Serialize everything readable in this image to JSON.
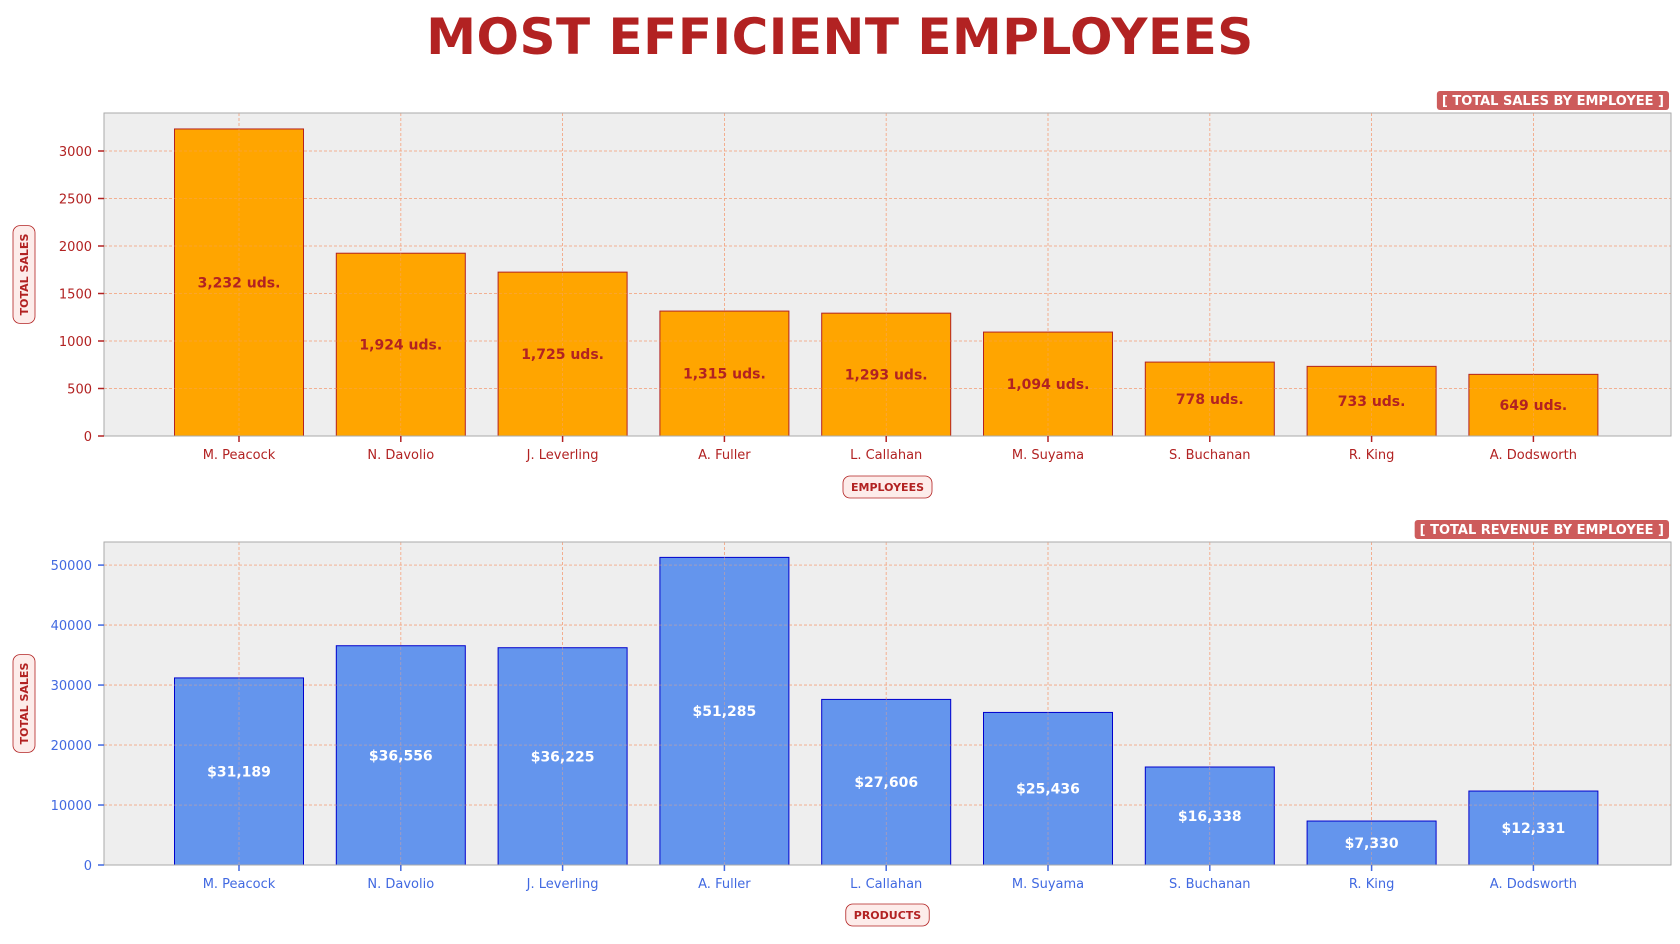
{
  "title": "MOST EFFICIENT EMPLOYEES",
  "chart_data": [
    {
      "type": "bar",
      "badge": "[ TOTAL SALES BY EMPLOYEE ]",
      "categories": [
        "M. Peacock",
        "N. Davolio",
        "J. Leverling",
        "A. Fuller",
        "L. Callahan",
        "M. Suyama",
        "S. Buchanan",
        "R. King",
        "A. Dodsworth"
      ],
      "values": [
        3232,
        1924,
        1725,
        1315,
        1293,
        1094,
        778,
        733,
        649
      ],
      "data_labels": [
        "3,232 uds.",
        "1,924 uds.",
        "1,725 uds.",
        "1,315 uds.",
        "1,293 uds.",
        "1,094 uds.",
        "778 uds.",
        "733 uds.",
        "649 uds."
      ],
      "xlabel": "EMPLOYEES",
      "ylabel": "TOTAL SALES",
      "ylim": [
        0,
        3400
      ],
      "yticks": [
        0,
        500,
        1000,
        1500,
        2000,
        2500,
        3000
      ],
      "grid": true,
      "colors": {
        "bar": "#ffa500",
        "bar_edge": "#b22222",
        "data_label": "#b22222",
        "tick": "#b22222",
        "grid": "#f4a582",
        "plot_bg": "#eeeeee",
        "badge_bg": "#cd5c5c"
      }
    },
    {
      "type": "bar",
      "badge": "[ TOTAL REVENUE BY EMPLOYEE ]",
      "categories": [
        "M. Peacock",
        "N. Davolio",
        "J. Leverling",
        "A. Fuller",
        "L. Callahan",
        "M. Suyama",
        "S. Buchanan",
        "R. King",
        "A. Dodsworth"
      ],
      "values": [
        31189,
        36556,
        36225,
        51285,
        27606,
        25436,
        16338,
        7330,
        12331
      ],
      "data_labels": [
        "$31,189",
        "$36,556",
        "$36,225",
        "$51,285",
        "$27,606",
        "$25,436",
        "$16,338",
        "$7,330",
        "$12,331"
      ],
      "xlabel": "PRODUCTS",
      "ylabel": "TOTAL SALES",
      "ylim": [
        0,
        53850
      ],
      "yticks": [
        0,
        10000,
        20000,
        30000,
        40000,
        50000
      ],
      "grid": true,
      "colors": {
        "bar": "#6495ed",
        "bar_edge": "#0000cd",
        "data_label": "#ffffff",
        "tick": "#4169e1",
        "grid": "#f4a582",
        "plot_bg": "#eeeeee",
        "badge_bg": "#cd5c5c"
      }
    }
  ]
}
